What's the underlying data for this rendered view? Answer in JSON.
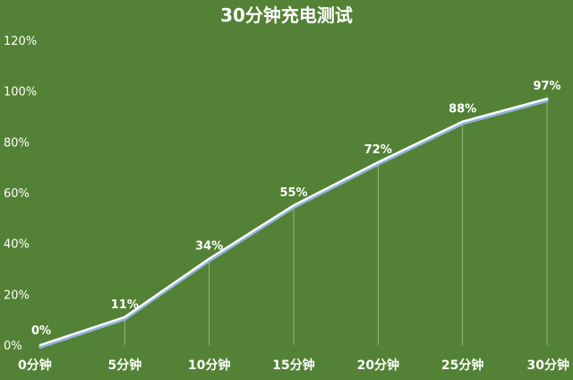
{
  "chart_data": {
    "type": "line",
    "title": "30分钟充电测试",
    "categories": [
      "0分钟",
      "5分钟",
      "10分钟",
      "15分钟",
      "20分钟",
      "25分钟",
      "30分钟"
    ],
    "series": [
      {
        "values": [
          0,
          11,
          34,
          55,
          72,
          88,
          97
        ]
      }
    ],
    "data_labels": [
      "0%",
      "11%",
      "34%",
      "55%",
      "72%",
      "88%",
      "97%"
    ],
    "ylim": [
      0,
      120
    ],
    "yticks": [
      0,
      20,
      40,
      60,
      80,
      100,
      120
    ],
    "ytick_labels": [
      "0%",
      "20%",
      "40%",
      "60%",
      "80%",
      "100%",
      "120%"
    ],
    "xlabel": "",
    "ylabel": "",
    "grid": false,
    "drop_lines": true,
    "colors": {
      "background": "#538135",
      "line": "#ffffff",
      "line_shadow": "#8db3d9",
      "drop_line": "#cfe0bd",
      "text": "#ffffff"
    }
  }
}
